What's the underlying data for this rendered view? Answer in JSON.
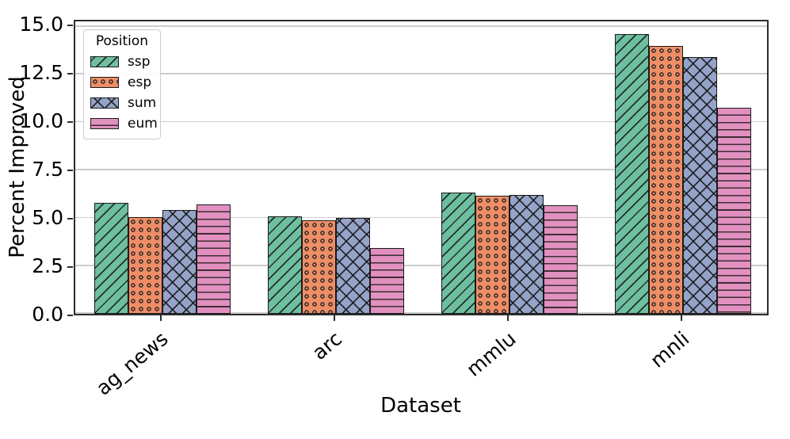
{
  "chart_data": {
    "type": "bar",
    "title": "",
    "xlabel": "Dataset",
    "ylabel": "Percent Improved",
    "categories": [
      "ag_news",
      "arc",
      "mmlu",
      "mnli"
    ],
    "series": [
      {
        "name": "ssp",
        "hatch": "/",
        "color": "#6ebfa0",
        "values": [
          5.75,
          5.05,
          6.25,
          14.45
        ]
      },
      {
        "name": "esp",
        "hatch": "o",
        "color": "#ef8d66",
        "values": [
          5.0,
          4.85,
          6.1,
          13.85
        ]
      },
      {
        "name": "sum",
        "hatch": "x",
        "color": "#95a3c8",
        "values": [
          5.35,
          4.95,
          6.15,
          13.25
        ]
      },
      {
        "name": "eum",
        "hatch": "-",
        "color": "#e190bf",
        "values": [
          5.65,
          3.4,
          5.6,
          10.65
        ]
      }
    ],
    "legend": {
      "title": "Position",
      "position": "upper left",
      "entries": [
        "ssp",
        "esp",
        "sum",
        "eum"
      ]
    },
    "yticks": [
      0.0,
      2.5,
      5.0,
      7.5,
      10.0,
      12.5,
      15.0
    ],
    "ytick_labels": [
      "0.0",
      "2.5",
      "5.0",
      "7.5",
      "10.0",
      "12.5",
      "15.0"
    ],
    "ylim": [
      0,
      15.27
    ],
    "grid": "horizontal",
    "colors": {
      "edge": "#1a1a1a",
      "gridline": "#cccccc",
      "spine": "#2b2b2b",
      "background": "#ffffff"
    }
  }
}
